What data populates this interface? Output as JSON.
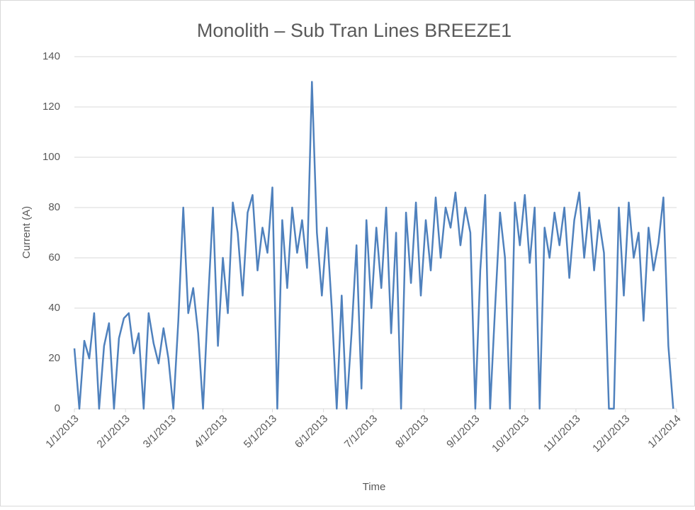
{
  "chart_data": {
    "type": "line",
    "title": "Monolith – Sub Tran Lines BREEZE1",
    "x_label": "Time",
    "y_label": "Current (A)",
    "x": [
      "2013-01-01",
      "2013-01-04",
      "2013-01-07",
      "2013-01-10",
      "2013-01-13",
      "2013-01-16",
      "2013-01-19",
      "2013-01-22",
      "2013-01-25",
      "2013-01-28",
      "2013-01-31",
      "2013-02-03",
      "2013-02-06",
      "2013-02-09",
      "2013-02-12",
      "2013-02-15",
      "2013-02-18",
      "2013-02-21",
      "2013-02-24",
      "2013-02-27",
      "2013-03-02",
      "2013-03-05",
      "2013-03-08",
      "2013-03-11",
      "2013-03-14",
      "2013-03-17",
      "2013-03-20",
      "2013-03-23",
      "2013-03-26",
      "2013-03-29",
      "2013-04-01",
      "2013-04-04",
      "2013-04-07",
      "2013-04-10",
      "2013-04-13",
      "2013-04-16",
      "2013-04-19",
      "2013-04-22",
      "2013-04-25",
      "2013-04-28",
      "2013-05-01",
      "2013-05-04",
      "2013-05-07",
      "2013-05-10",
      "2013-05-13",
      "2013-05-16",
      "2013-05-19",
      "2013-05-22",
      "2013-05-25",
      "2013-05-28",
      "2013-05-31",
      "2013-06-03",
      "2013-06-06",
      "2013-06-09",
      "2013-06-12",
      "2013-06-15",
      "2013-06-18",
      "2013-06-21",
      "2013-06-24",
      "2013-06-27",
      "2013-06-30",
      "2013-07-03",
      "2013-07-06",
      "2013-07-09",
      "2013-07-12",
      "2013-07-15",
      "2013-07-18",
      "2013-07-21",
      "2013-07-24",
      "2013-07-27",
      "2013-07-30",
      "2013-08-02",
      "2013-08-05",
      "2013-08-08",
      "2013-08-11",
      "2013-08-14",
      "2013-08-17",
      "2013-08-20",
      "2013-08-23",
      "2013-08-26",
      "2013-08-29",
      "2013-09-01",
      "2013-09-04",
      "2013-09-07",
      "2013-09-10",
      "2013-09-13",
      "2013-09-16",
      "2013-09-19",
      "2013-09-22",
      "2013-09-25",
      "2013-09-28",
      "2013-10-01",
      "2013-10-04",
      "2013-10-07",
      "2013-10-10",
      "2013-10-13",
      "2013-10-16",
      "2013-10-19",
      "2013-10-22",
      "2013-10-25",
      "2013-10-28",
      "2013-10-31",
      "2013-11-03",
      "2013-11-06",
      "2013-11-09",
      "2013-11-12",
      "2013-11-15",
      "2013-11-18",
      "2013-11-21",
      "2013-11-24",
      "2013-11-27",
      "2013-11-30",
      "2013-12-03",
      "2013-12-06",
      "2013-12-09",
      "2013-12-12",
      "2013-12-15",
      "2013-12-18",
      "2013-12-21",
      "2013-12-24",
      "2013-12-27",
      "2013-12-30"
    ],
    "series": [
      {
        "name": "BREEZE1",
        "color": "#4f81bd",
        "values": [
          24,
          0,
          27,
          20,
          38,
          0,
          25,
          34,
          0,
          28,
          36,
          38,
          22,
          30,
          0,
          38,
          26,
          18,
          32,
          20,
          0,
          35,
          80,
          38,
          48,
          30,
          0,
          42,
          80,
          25,
          60,
          38,
          82,
          70,
          45,
          78,
          85,
          55,
          72,
          62,
          88,
          0,
          75,
          48,
          80,
          62,
          75,
          56,
          130,
          70,
          45,
          72,
          40,
          0,
          45,
          0,
          30,
          65,
          8,
          75,
          40,
          72,
          48,
          80,
          30,
          70,
          0,
          78,
          50,
          82,
          45,
          75,
          55,
          84,
          60,
          80,
          72,
          86,
          65,
          80,
          70,
          0,
          55,
          85,
          0,
          40,
          78,
          60,
          0,
          82,
          65,
          85,
          58,
          80,
          0,
          72,
          60,
          78,
          65,
          80,
          52,
          75,
          86,
          60,
          80,
          55,
          75,
          62,
          0,
          0,
          80,
          45,
          82,
          60,
          70,
          35,
          72,
          55,
          66,
          84,
          25,
          0
        ]
      }
    ],
    "xlim": [
      "2013-01-01",
      "2014-01-01"
    ],
    "xticks": [
      {
        "value": "2013-01-01",
        "label": "1/1/2013"
      },
      {
        "value": "2013-02-01",
        "label": "2/1/2013"
      },
      {
        "value": "2013-03-01",
        "label": "3/1/2013"
      },
      {
        "value": "2013-04-01",
        "label": "4/1/2013"
      },
      {
        "value": "2013-05-01",
        "label": "5/1/2013"
      },
      {
        "value": "2013-06-01",
        "label": "6/1/2013"
      },
      {
        "value": "2013-07-01",
        "label": "7/1/2013"
      },
      {
        "value": "2013-08-01",
        "label": "8/1/2013"
      },
      {
        "value": "2013-09-01",
        "label": "9/1/2013"
      },
      {
        "value": "2013-10-01",
        "label": "10/1/2013"
      },
      {
        "value": "2013-11-01",
        "label": "11/1/2013"
      },
      {
        "value": "2013-12-01",
        "label": "12/1/2013"
      },
      {
        "value": "2014-01-01",
        "label": "1/1/2014"
      }
    ],
    "ylim": [
      0,
      140
    ],
    "yticks": [
      0,
      20,
      40,
      60,
      80,
      100,
      120,
      140
    ],
    "grid": true
  }
}
